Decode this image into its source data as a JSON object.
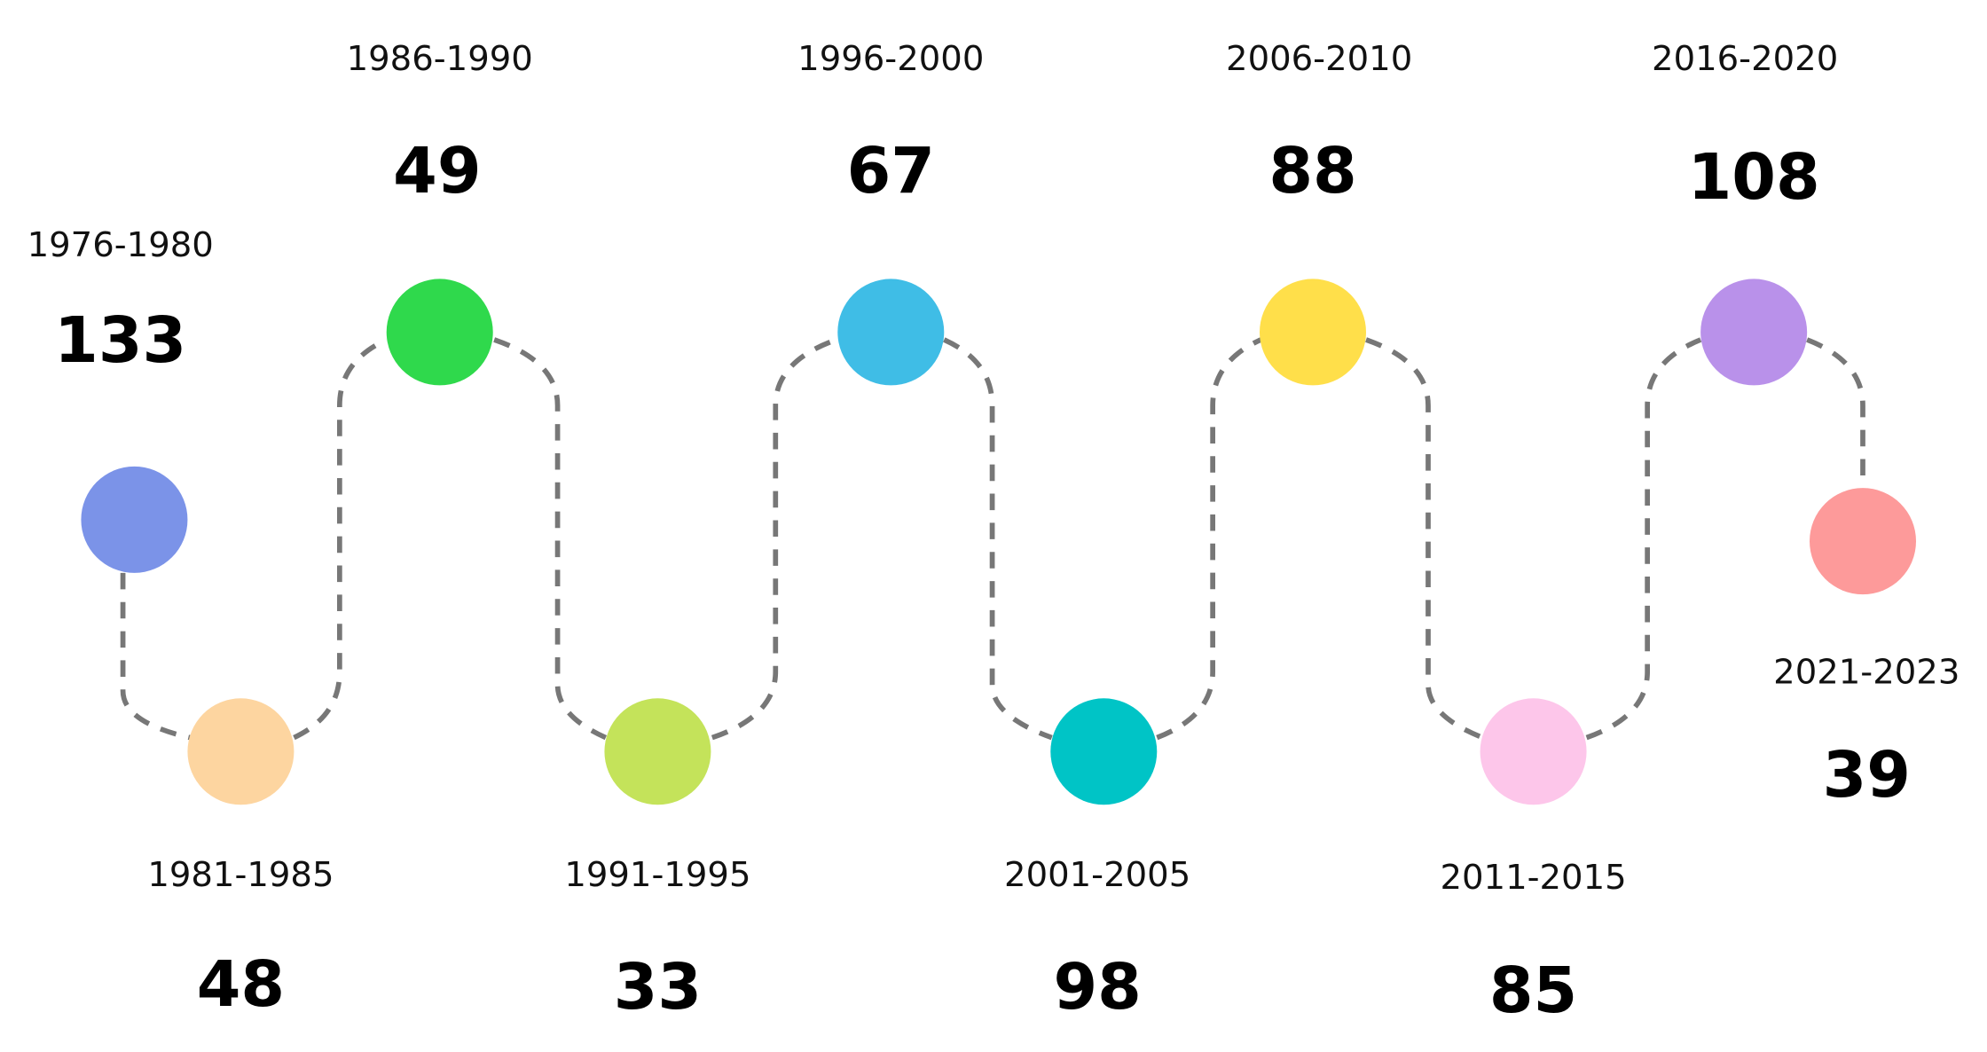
{
  "nodes": [
    {
      "period": "1976-1980",
      "count": "133",
      "color": "#7b93e8"
    },
    {
      "period": "1981-1985",
      "count": "48",
      "color": "#fdd5a0"
    },
    {
      "period": "1986-1990",
      "count": "49",
      "color": "#2fd94c"
    },
    {
      "period": "1991-1995",
      "count": "33",
      "color": "#c4e35a"
    },
    {
      "period": "1996-2000",
      "count": "67",
      "color": "#3fbde6"
    },
    {
      "period": "2001-2005",
      "count": "98",
      "color": "#00c4c6"
    },
    {
      "period": "2006-2010",
      "count": "88",
      "color": "#ffdf4a"
    },
    {
      "period": "2011-2015",
      "count": "85",
      "color": "#fdc6ea"
    },
    {
      "period": "2016-2020",
      "count": "108",
      "color": "#b991ea"
    },
    {
      "period": "2021-2023",
      "count": "39",
      "color": "#fd9a9a"
    }
  ]
}
